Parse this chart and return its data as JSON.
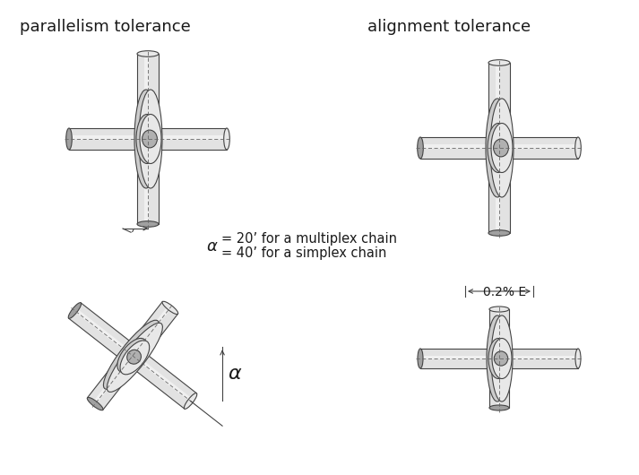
{
  "background_color": "#ffffff",
  "label_parallelism": "parallelism tolerance",
  "label_alignment": "alignment tolerance",
  "alpha_label": "α",
  "annotation_text_line1": "= 40’ for a simplex chain",
  "annotation_text_line2": "= 20’ for a multiplex chain",
  "annotation_alpha": "α",
  "annotation_02e": "0.2% E",
  "text_color": "#1a1a1a",
  "shaft_light": "#e2e2e2",
  "shaft_mid": "#c8c8c8",
  "shaft_dark": "#a0a0a0",
  "shaft_darker": "#888888",
  "sprocket_light": "#e8e8e8",
  "sprocket_mid": "#cccccc",
  "sprocket_dark": "#aaaaaa",
  "sprocket_darker": "#888888",
  "hub_color": "#b0b0b0",
  "edge_color": "#444444",
  "dim_color": "#333333",
  "dash_color": "#666666"
}
